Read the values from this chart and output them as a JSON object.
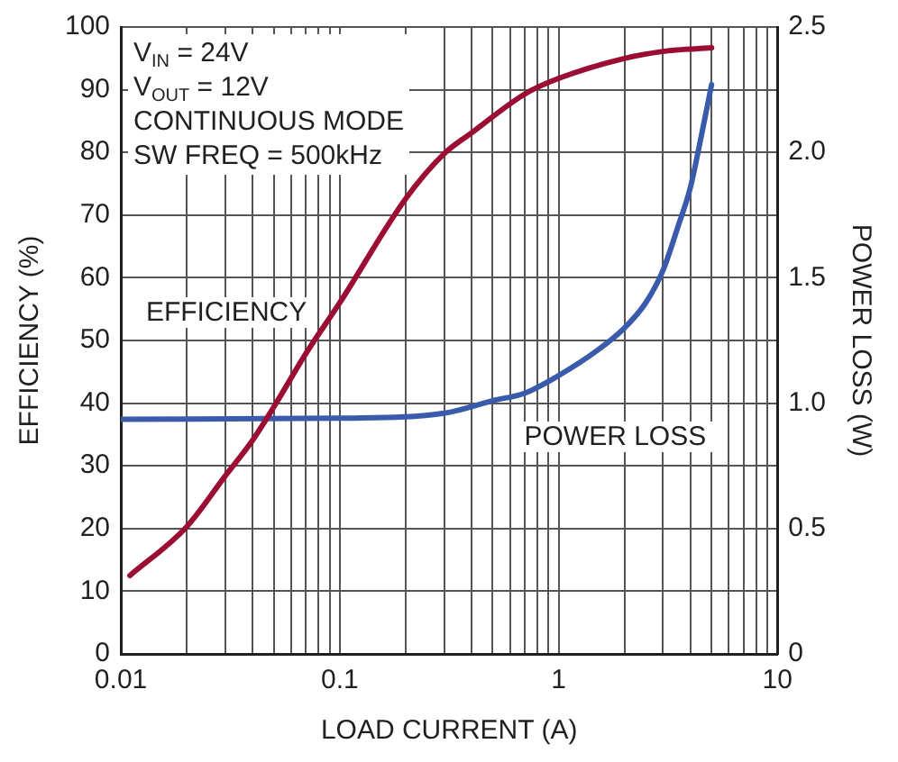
{
  "chart_data": {
    "type": "line",
    "xlabel": "LOAD CURRENT (A)",
    "ylabel": "EFFICIENCY (%)",
    "y2label": "POWER LOSS (W)",
    "log": "x",
    "grid": true,
    "legend": false,
    "marker": "none",
    "line_style": "solid",
    "xlim": [
      0.01,
      10
    ],
    "xticks": [
      0.01,
      {
        "value": 0.02,
        "label": null
      },
      {
        "value": 0.03,
        "label": null
      },
      {
        "value": 0.04,
        "label": null
      },
      {
        "value": 0.05,
        "label": null
      },
      {
        "value": 0.06,
        "label": null
      },
      {
        "value": 0.07,
        "label": null
      },
      {
        "value": 0.08,
        "label": null
      },
      {
        "value": 0.09,
        "label": null
      },
      0.1,
      {
        "value": 0.2,
        "label": null
      },
      {
        "value": 0.3,
        "label": null
      },
      {
        "value": 0.4,
        "label": null
      },
      {
        "value": 0.5,
        "label": null
      },
      {
        "value": 0.6,
        "label": null
      },
      {
        "value": 0.7,
        "label": null
      },
      {
        "value": 0.8,
        "label": null
      },
      {
        "value": 0.9,
        "label": null
      },
      1,
      {
        "value": 2,
        "label": null
      },
      {
        "value": 3,
        "label": null
      },
      {
        "value": 4,
        "label": null
      },
      {
        "value": 5,
        "label": null
      },
      {
        "value": 6,
        "label": null
      },
      {
        "value": 7,
        "label": null
      },
      {
        "value": 8,
        "label": null
      },
      {
        "value": 9,
        "label": null
      },
      10
    ],
    "ylim": [
      0,
      100
    ],
    "yticks": [
      0,
      10,
      20,
      30,
      40,
      50,
      60,
      70,
      80,
      90,
      100
    ],
    "y2lim": [
      0,
      2.5
    ],
    "y2ticks": [
      0,
      0.5,
      {
        "value": 1,
        "label": "1.0"
      },
      1.5,
      {
        "value": 2,
        "label": "2.0"
      },
      2.5
    ],
    "annotations": [
      "V$_{IN}$ = 24V",
      "V$_{OUT}$ = 12V",
      "CONTINUOUS MODE",
      "SW FREQ = 500kHz"
    ],
    "series": [
      {
        "name": "EFFICIENCY",
        "color": "#9b0d33",
        "x": [
          0.011,
          0.02,
          0.03,
          0.04,
          0.05,
          0.07,
          0.1,
          0.2,
          0.3,
          0.4,
          0.7,
          1,
          2,
          3,
          5
        ],
        "values": [
          12.5,
          20.3,
          28.4,
          34.1,
          39.4,
          47.9,
          56,
          72.6,
          79.8,
          83.1,
          89.3,
          91.8,
          95,
          96.1,
          96.7
        ]
      },
      {
        "name": "POWER LOSS",
        "color": "#3a5bab",
        "axis": "y2",
        "x": [
          0.01,
          0.1,
          0.3,
          0.5,
          0.7,
          1,
          1.5,
          2,
          2.5,
          3,
          3.5,
          4,
          4.5,
          5
        ],
        "values": [
          0.936,
          0.94,
          0.96,
          1.01,
          1.04,
          1.11,
          1.21,
          1.3,
          1.4,
          1.53,
          1.7,
          1.86,
          2.07,
          2.27
        ]
      }
    ]
  }
}
